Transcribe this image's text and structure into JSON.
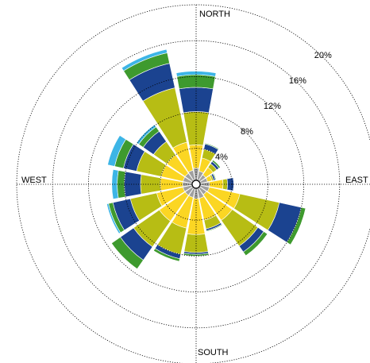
{
  "chart_data": {
    "type": "windrose",
    "categories": [
      "NORTH",
      null,
      null,
      null,
      "EAST",
      null,
      null,
      null,
      "SOUTH",
      null,
      null,
      null,
      "WEST",
      null,
      null,
      null
    ],
    "series": [
      {
        "color": "#a0a0a0",
        "values": [
          1.8,
          1.5,
          1.3,
          1.3,
          1.5,
          1.5,
          1.4,
          1.6,
          1.6,
          1.5,
          1.5,
          1.5,
          1.5,
          1.5,
          1.5,
          1.6
        ]
      },
      {
        "color": "#fbd623",
        "values": [
          2.6,
          1.5,
          1.0,
          0.5,
          1.5,
          3.5,
          3.5,
          2.5,
          4.0,
          3.5,
          3.5,
          3.0,
          2.5,
          2.5,
          2.5,
          3.2
        ]
      },
      {
        "color": "#b7bd14",
        "values": [
          3.7,
          1.0,
          0.5,
          0.2,
          0.5,
          4.5,
          3.5,
          1.0,
          2.0,
          3.0,
          3.5,
          3.0,
          2.2,
          2.8,
          1.8,
          6.2
        ]
      },
      {
        "color": "#1b4390",
        "values": [
          2.7,
          0.6,
          0.3,
          0.2,
          0.7,
          2.5,
          0.8,
          0.2,
          0.2,
          0.5,
          1.8,
          2.0,
          1.8,
          1.5,
          1.4,
          2.8
        ]
      },
      {
        "color": "#3e9a2e",
        "values": [
          1.4,
          0.1,
          0.2,
          0.1,
          0,
          0.5,
          0.5,
          0.1,
          0.2,
          0.3,
          1.2,
          0.5,
          0.8,
          1.0,
          0.6,
          1.2
        ]
      },
      {
        "color": "#3db5e6",
        "values": [
          0.4,
          0,
          0,
          0,
          0,
          0,
          0,
          0,
          0,
          0,
          0,
          0.2,
          0.6,
          0.8,
          0.3,
          0.4
        ]
      }
    ],
    "rlim": [
      0,
      20
    ],
    "rticks": [
      {
        "value": 4,
        "label": "4%"
      },
      {
        "value": 8,
        "label": "8%"
      },
      {
        "value": 12,
        "label": "12%"
      },
      {
        "value": 16,
        "label": "16%"
      },
      {
        "value": 20,
        "label": "20%"
      }
    ]
  }
}
